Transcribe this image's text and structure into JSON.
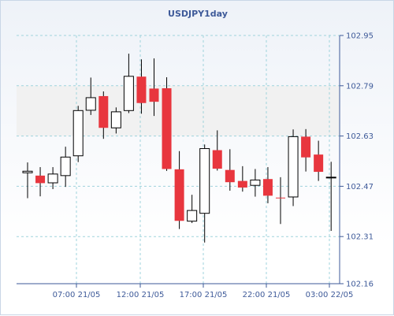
{
  "chart_data": {
    "type": "candlestick",
    "title": "USDJPY1day",
    "xlabel": "",
    "ylabel": "",
    "ylim": [
      102.16,
      102.95
    ],
    "y_ticks": [
      "102.95",
      "102.79",
      "102.63",
      "102.47",
      "102.31",
      "102.16"
    ],
    "x_ticks": [
      "07:00 21/05",
      "12:00 21/05",
      "17:00 21/05",
      "22:00 21/05",
      "03:00 22/05"
    ],
    "grid": true,
    "colors": {
      "up_fill": "#ffffff",
      "down_fill": "#e8363e",
      "outline": "#000000",
      "grid": "#9fd3dc",
      "axis": "#3e5a99",
      "band": "#f1f1f1"
    },
    "candles": [
      {
        "open": 102.513,
        "high": 102.546,
        "low": 102.432,
        "close": 102.518
      },
      {
        "open": 102.504,
        "high": 102.531,
        "low": 102.438,
        "close": 102.48
      },
      {
        "open": 102.481,
        "high": 102.531,
        "low": 102.461,
        "close": 102.509
      },
      {
        "open": 102.504,
        "high": 102.596,
        "low": 102.468,
        "close": 102.563
      },
      {
        "open": 102.567,
        "high": 102.726,
        "low": 102.547,
        "close": 102.711
      },
      {
        "open": 102.712,
        "high": 102.816,
        "low": 102.697,
        "close": 102.752
      },
      {
        "open": 102.757,
        "high": 102.772,
        "low": 102.621,
        "close": 102.656
      },
      {
        "open": 102.656,
        "high": 102.721,
        "low": 102.638,
        "close": 102.707
      },
      {
        "open": 102.711,
        "high": 102.892,
        "low": 102.703,
        "close": 102.82
      },
      {
        "open": 102.819,
        "high": 102.874,
        "low": 102.701,
        "close": 102.735
      },
      {
        "open": 102.781,
        "high": 102.877,
        "low": 102.694,
        "close": 102.739
      },
      {
        "open": 102.782,
        "high": 102.817,
        "low": 102.519,
        "close": 102.525
      },
      {
        "open": 102.524,
        "high": 102.582,
        "low": 102.334,
        "close": 102.36
      },
      {
        "open": 102.359,
        "high": 102.443,
        "low": 102.353,
        "close": 102.393
      },
      {
        "open": 102.384,
        "high": 102.603,
        "low": 102.291,
        "close": 102.59
      },
      {
        "open": 102.585,
        "high": 102.648,
        "low": 102.52,
        "close": 102.526
      },
      {
        "open": 102.522,
        "high": 102.588,
        "low": 102.456,
        "close": 102.483
      },
      {
        "open": 102.487,
        "high": 102.534,
        "low": 102.453,
        "close": 102.466
      },
      {
        "open": 102.473,
        "high": 102.525,
        "low": 102.437,
        "close": 102.49
      },
      {
        "open": 102.493,
        "high": 102.531,
        "low": 102.416,
        "close": 102.44
      },
      {
        "open": 102.434,
        "high": 102.499,
        "low": 102.35,
        "close": 102.433
      },
      {
        "open": 102.436,
        "high": 102.651,
        "low": 102.407,
        "close": 102.628
      },
      {
        "open": 102.628,
        "high": 102.652,
        "low": 102.517,
        "close": 102.562
      },
      {
        "open": 102.571,
        "high": 102.615,
        "low": 102.487,
        "close": 102.516
      },
      {
        "open": 102.499,
        "high": 102.548,
        "low": 102.328,
        "close": 102.499
      }
    ]
  }
}
